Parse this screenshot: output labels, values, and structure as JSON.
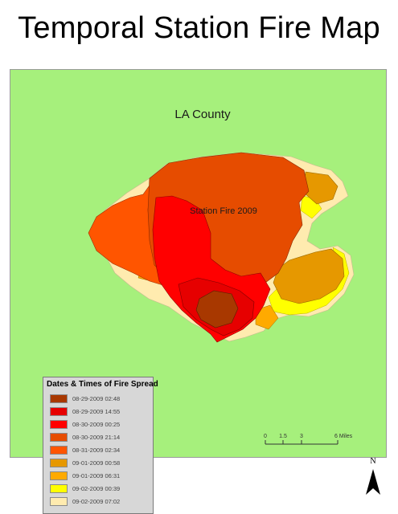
{
  "title": "Temporal Station Fire Map",
  "map": {
    "background_color": "#a6f07c",
    "county_label": "LA County",
    "fire_label": "Station Fire 2009"
  },
  "legend": {
    "title": "Dates & Times of Fire Spread",
    "items": [
      {
        "label": "08-29-2009 02:48",
        "color": "#a83800"
      },
      {
        "label": "08-29-2009 14:55",
        "color": "#e60000"
      },
      {
        "label": "08-30-2009 00:25",
        "color": "#ff0000"
      },
      {
        "label": "08-30-2009 21:14",
        "color": "#e64c00"
      },
      {
        "label": "08-31-2009 02:34",
        "color": "#ff5500"
      },
      {
        "label": "09-01-2009 00:58",
        "color": "#e69800"
      },
      {
        "label": "09-01-2009 06:31",
        "color": "#ffaa00"
      },
      {
        "label": "09-02-2009 00:39",
        "color": "#ffff00"
      },
      {
        "label": "09-02-2009 07:02",
        "color": "#ffebaf"
      }
    ]
  },
  "scale_bar": {
    "ticks": [
      "0",
      "1.5",
      "3",
      "6 Miles"
    ]
  },
  "north_arrow": {
    "label": "N",
    "icon": "north-arrow-icon"
  }
}
